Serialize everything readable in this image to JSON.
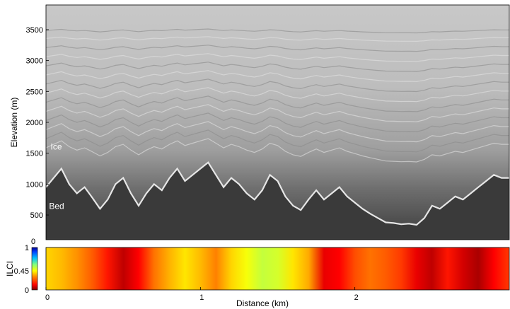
{
  "chart_data": [
    {
      "type": "heatmap",
      "subtype": "radargram",
      "ylabel": "Elevation (m)",
      "xlabel": "",
      "xlim": [
        0,
        3
      ],
      "ylim": [
        100,
        3900
      ],
      "yticks": [
        500,
        1000,
        1500,
        2000,
        2500,
        3000,
        3500
      ],
      "colormap": "grayscale",
      "annotations": [
        {
          "text": "Ice",
          "x": 0.03,
          "y": 1560
        },
        {
          "text": "Bed",
          "x": 0.02,
          "y": 600
        }
      ],
      "bed_profile": {
        "x": [
          0.0,
          0.05,
          0.1,
          0.15,
          0.2,
          0.25,
          0.3,
          0.35,
          0.4,
          0.45,
          0.5,
          0.55,
          0.6,
          0.65,
          0.7,
          0.75,
          0.8,
          0.85,
          0.9,
          0.95,
          1.0,
          1.05,
          1.1,
          1.15,
          1.2,
          1.25,
          1.3,
          1.35,
          1.4,
          1.45,
          1.5,
          1.55,
          1.6,
          1.65,
          1.7,
          1.75,
          1.8,
          1.85,
          1.9,
          1.95,
          2.0,
          2.05,
          2.1,
          2.15,
          2.2,
          2.25,
          2.3,
          2.35,
          2.4,
          2.45,
          2.5,
          2.55,
          2.6,
          2.65,
          2.7,
          2.75,
          2.8,
          2.85,
          2.9,
          2.95,
          3.0
        ],
        "y": [
          950,
          1100,
          1250,
          1000,
          850,
          950,
          780,
          600,
          750,
          1000,
          1100,
          850,
          650,
          850,
          1000,
          900,
          1100,
          1250,
          1050,
          1150,
          1250,
          1350,
          1150,
          950,
          1100,
          1000,
          850,
          750,
          900,
          1150,
          1050,
          800,
          650,
          580,
          750,
          900,
          750,
          850,
          950,
          800,
          700,
          600,
          520,
          450,
          380,
          370,
          350,
          360,
          340,
          450,
          650,
          600,
          700,
          800,
          750,
          850,
          950,
          1050,
          1150,
          1100,
          1100
        ]
      },
      "layers": [
        {
          "base": 3480,
          "amp": 25
        },
        {
          "base": 3350,
          "amp": 30
        },
        {
          "base": 3200,
          "amp": 40
        },
        {
          "base": 3050,
          "amp": 50
        },
        {
          "base": 2900,
          "amp": 60
        },
        {
          "base": 2750,
          "amp": 70
        },
        {
          "base": 2600,
          "amp": 80
        },
        {
          "base": 2450,
          "amp": 90
        },
        {
          "base": 2300,
          "amp": 100
        },
        {
          "base": 2150,
          "amp": 110
        },
        {
          "base": 2000,
          "amp": 120
        },
        {
          "base": 1850,
          "amp": 130
        },
        {
          "base": 1700,
          "amp": 140
        },
        {
          "base": 1550,
          "amp": 150
        }
      ]
    },
    {
      "type": "heatmap",
      "subtype": "colorstrip",
      "xlabel": "Distance (km)",
      "ylabel": "ILCI",
      "xlim": [
        0,
        3
      ],
      "xticks": [
        0,
        1,
        2
      ],
      "colorbar": {
        "ticks": [
          0,
          0.45,
          1
        ],
        "labels": [
          "0",
          "0.45",
          "1"
        ],
        "top_label": "0"
      },
      "x": [
        0.0,
        0.1,
        0.2,
        0.3,
        0.4,
        0.5,
        0.6,
        0.7,
        0.8,
        0.9,
        1.0,
        1.1,
        1.2,
        1.3,
        1.4,
        1.5,
        1.6,
        1.7,
        1.8,
        1.9,
        2.0,
        2.1,
        2.2,
        2.3,
        2.4,
        2.5,
        2.6,
        2.7,
        2.8,
        2.9,
        3.0
      ],
      "values": [
        0.4,
        0.37,
        0.32,
        0.25,
        0.15,
        0.06,
        0.12,
        0.28,
        0.36,
        0.42,
        0.37,
        0.3,
        0.4,
        0.46,
        0.52,
        0.5,
        0.42,
        0.35,
        0.1,
        0.12,
        0.23,
        0.28,
        0.25,
        0.2,
        0.1,
        0.06,
        0.15,
        0.08,
        0.04,
        0.12,
        0.2
      ]
    }
  ]
}
